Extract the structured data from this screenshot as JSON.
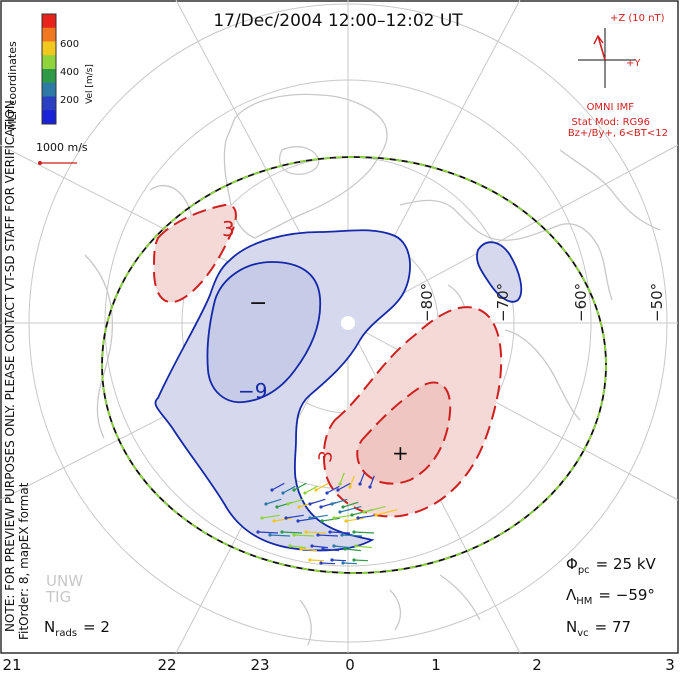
{
  "title": "17/Dec/2004 12:00–12:02 UT",
  "colorbar": {
    "ticks": [
      "600",
      "400",
      "200"
    ],
    "label": "Vel [m/s]",
    "colors": [
      "#e8231c",
      "#f07820",
      "#f2c81e",
      "#8ed43a",
      "#2e9a48",
      "#2d7aa6",
      "#2a3fc2",
      "#1a22d8"
    ]
  },
  "coord_system": "MLT coordinates",
  "ref_vector_label": "1000 m/s",
  "imf": {
    "bz_label": "+Z (10 nT)",
    "by_label": "+Y",
    "source": "OMNI IMF",
    "model": "Stat Mod: RG96",
    "model_cond": "Bz+/By+, 6<BT<12"
  },
  "notice": "NOTE: FOR PREVIEW PURPOSES ONLY. PLEASE CONTACT VT-SD STAFF FOR VERIFICATION.",
  "fit": "FitOrder: 8, mapEX format",
  "watermark": [
    "UNW",
    "TIG"
  ],
  "mlt_ticks": [
    "21",
    "22",
    "23",
    "0",
    "1",
    "2",
    "3"
  ],
  "lat_labels": [
    "−80°",
    "−70°",
    "−60°",
    "−50°"
  ],
  "contours": {
    "neg_label": "−9",
    "pos_label": "3",
    "pos_label2": "3",
    "min_marker": "−",
    "max_marker": "+"
  },
  "stats": {
    "phi_pc": {
      "sym": "Φ",
      "sub": "pc",
      "value": "= 25 kV"
    },
    "lambda_hm": {
      "sym": "Λ",
      "sub": "HM",
      "value": "= −59°"
    },
    "n_vc": {
      "sym": "N",
      "sub": "vc",
      "value": "= 77"
    },
    "n_rads": {
      "sym": "N",
      "sub": "rads",
      "value": "= 2"
    }
  },
  "colors": {
    "negative_contour": "#1528a8",
    "negative_fill": "#d6d9ee",
    "positive_contour": "#cf1f1f",
    "positive_fill": "#f4d9d6",
    "boundary": "#111111",
    "boundary_dash": "#8ad43a",
    "grid": "#c8c8c8",
    "land": "#c8c8c8"
  }
}
